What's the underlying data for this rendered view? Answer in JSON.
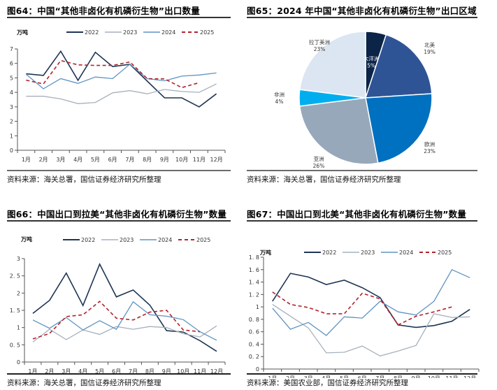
{
  "colors": {
    "y2022": "#1f3553",
    "y2023": "#a6b1bd",
    "y2024": "#5f93c2",
    "y2025": "#b2232c",
    "axis": "#555555"
  },
  "panels": {
    "fig64": {
      "title": "图64：中国“其他非卤化有机磷衍生物”出口数量",
      "source": "资料来源：海关总署，国信证券经济研究所整理"
    },
    "fig65": {
      "title": "图65：2024 年中国“其他非卤化有机磷衍生物”出口区域",
      "source": "资料来源：海关总署，国信证券经济研究所整理"
    },
    "fig66": {
      "title": "图66：中国出口到拉美“其他非卤化有机磷衍生物”数量",
      "source": "资料来源：海关总署，国信证券经济研究所整理"
    },
    "fig67": {
      "title": "图67：中国出口到北美“其他非卤化有机磷衍生物”数量",
      "source": "资料来源：美国农业部，国信证券经济研究所整理"
    }
  },
  "chart_data": [
    {
      "id": "fig64",
      "type": "line",
      "title": "中国“其他非卤化有机磷衍生物”出口数量",
      "ylabel": "万吨",
      "xlabel": "",
      "categories": [
        "1月",
        "2月",
        "3月",
        "4月",
        "5月",
        "6月",
        "7月",
        "8月",
        "9月",
        "10月",
        "11月",
        "12月"
      ],
      "ylim": [
        0,
        7
      ],
      "yticks": [
        "0",
        "1",
        "2",
        "3",
        "4",
        "5",
        "6",
        "7"
      ],
      "ytick_values": [
        0,
        1,
        2,
        3,
        4,
        5,
        6,
        7
      ],
      "grid": false,
      "legend": "top",
      "series": [
        {
          "name": "2022",
          "style": "solid-dark",
          "values": [
            5.28,
            5.17,
            6.84,
            4.83,
            6.77,
            5.78,
            5.94,
            4.78,
            3.62,
            3.62,
            3.0,
            3.9
          ]
        },
        {
          "name": "2023",
          "style": "solid-gray",
          "values": [
            3.73,
            3.73,
            3.55,
            3.22,
            3.3,
            3.97,
            4.12,
            3.9,
            4.2,
            4.06,
            4.0,
            4.58
          ]
        },
        {
          "name": "2024",
          "style": "solid-blue",
          "values": [
            5.25,
            4.25,
            4.95,
            4.62,
            5.06,
            4.95,
            5.95,
            4.95,
            4.8,
            5.12,
            5.2,
            5.34
          ]
        },
        {
          "name": "2025",
          "style": "dashed-red",
          "values": [
            4.84,
            4.58,
            6.2,
            5.9,
            5.86,
            5.86,
            6.1,
            4.95,
            4.93,
            4.33,
            4.67,
            null
          ]
        }
      ]
    },
    {
      "id": "fig65",
      "type": "pie",
      "title": "2024 年中国“其他非卤化有机磷衍生物”出口区域",
      "start": "top",
      "direction": "clockwise",
      "slices": [
        {
          "label": "大洋洲",
          "value": 5,
          "pct": "5%",
          "color": "#0b2447",
          "label_color": "#ffffff"
        },
        {
          "label": "北美",
          "value": 19,
          "pct": "19%",
          "color": "#2f5496",
          "label_color": "#333333"
        },
        {
          "label": "欧洲",
          "value": 23,
          "pct": "23%",
          "color": "#0070c0",
          "label_color": "#333333"
        },
        {
          "label": "亚洲",
          "value": 26,
          "pct": "26%",
          "color": "#97a8bb",
          "label_color": "#333333"
        },
        {
          "label": "非洲",
          "value": 4,
          "pct": "4%",
          "color": "#00aeef",
          "label_color": "#333333"
        },
        {
          "label": "拉丁美洲",
          "value": 23,
          "pct": "23%",
          "color": "#dce6f2",
          "label_color": "#333333"
        }
      ]
    },
    {
      "id": "fig66",
      "type": "line",
      "title": "中国出口到拉美“其他非卤化有机磷衍生物”数量",
      "ylabel": "万吨",
      "xlabel": "",
      "categories": [
        "1月",
        "2月",
        "3月",
        "4月",
        "5月",
        "6月",
        "7月",
        "8月",
        "9月",
        "10月",
        "11月",
        "12月"
      ],
      "ylim": [
        0,
        3
      ],
      "yticks": [
        "0",
        "0. 5",
        "1",
        "1. 5",
        "2",
        "2. 5",
        "3"
      ],
      "ytick_values": [
        0,
        0.5,
        1,
        1.5,
        2,
        2.5,
        3
      ],
      "grid": false,
      "legend": "top",
      "series": [
        {
          "name": "2022",
          "style": "solid-dark",
          "values": [
            1.41,
            1.79,
            2.58,
            1.64,
            2.84,
            1.89,
            2.09,
            1.65,
            0.91,
            0.87,
            0.62,
            0.31
          ]
        },
        {
          "name": "2023",
          "style": "solid-gray",
          "values": [
            0.58,
            0.95,
            0.65,
            0.93,
            0.8,
            1.03,
            0.95,
            1.03,
            1.0,
            0.82,
            0.73,
            1.05
          ]
        },
        {
          "name": "2024",
          "style": "solid-blue",
          "values": [
            1.22,
            0.98,
            1.29,
            0.93,
            1.2,
            0.95,
            1.75,
            1.37,
            1.33,
            1.23,
            0.88,
            0.63
          ]
        },
        {
          "name": "2025",
          "style": "dashed-red",
          "values": [
            0.67,
            0.83,
            1.32,
            1.37,
            1.76,
            1.27,
            1.22,
            1.45,
            1.5,
            0.93,
            0.88,
            null
          ]
        }
      ]
    },
    {
      "id": "fig67",
      "type": "line",
      "title": "中国出口到北美“其他非卤化有机磷衍生物”数量",
      "ylabel": "万吨",
      "xlabel": "",
      "categories": [
        "1月",
        "2月",
        "3月",
        "4月",
        "5月",
        "6月",
        "7月",
        "8月",
        "9月",
        "10月",
        "11月",
        "12月"
      ],
      "ylim": [
        0,
        1.8
      ],
      "yticks": [
        "0",
        "0. 2",
        "0. 4",
        "0. 6",
        "0. 8",
        "1",
        "1. 2",
        "1. 4",
        "1. 6",
        "1. 8"
      ],
      "ytick_values": [
        0,
        0.2,
        0.4,
        0.6,
        0.8,
        1,
        1.2,
        1.4,
        1.6,
        1.8
      ],
      "grid": false,
      "legend": "top",
      "series": [
        {
          "name": "2022",
          "style": "solid-dark",
          "values": [
            1.09,
            1.54,
            1.48,
            1.36,
            1.43,
            1.31,
            1.15,
            0.71,
            0.67,
            0.7,
            0.77,
            0.96
          ]
        },
        {
          "name": "2023",
          "style": "solid-gray",
          "values": [
            1.04,
            0.85,
            0.66,
            0.26,
            0.27,
            0.37,
            0.21,
            0.29,
            0.38,
            0.89,
            0.83,
            0.84
          ]
        },
        {
          "name": "2024",
          "style": "solid-blue",
          "values": [
            0.98,
            0.64,
            0.75,
            0.54,
            0.84,
            0.82,
            1.09,
            0.92,
            0.87,
            1.09,
            1.6,
            1.47
          ]
        },
        {
          "name": "2025",
          "style": "dashed-red",
          "values": [
            1.24,
            1.04,
            0.99,
            0.89,
            0.89,
            1.22,
            1.13,
            0.71,
            0.85,
            0.92,
            1.0,
            null
          ]
        }
      ]
    }
  ]
}
